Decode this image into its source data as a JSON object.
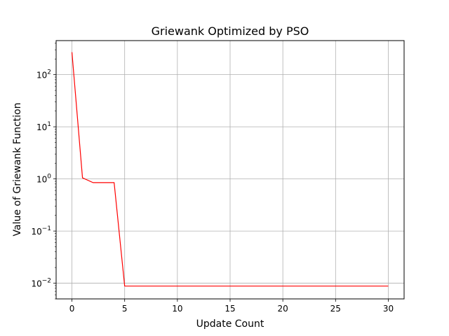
{
  "chart_data": {
    "type": "line",
    "title": "Griewank Optimized by PSO",
    "xlabel": "Update Count",
    "ylabel": "Value of Griewank Function",
    "yscale": "log",
    "xlim": [
      -1.5,
      31.5
    ],
    "ylim": [
      0.005,
      450
    ],
    "grid": true,
    "legend": "none",
    "x_ticks": [
      "0",
      "5",
      "10",
      "15",
      "20",
      "25",
      "30"
    ],
    "y_ticks": [
      {
        "base": "10",
        "exp": "−2",
        "value": 0.01
      },
      {
        "base": "10",
        "exp": "−1",
        "value": 0.1
      },
      {
        "base": "10",
        "exp": "0",
        "value": 1
      },
      {
        "base": "10",
        "exp": "1",
        "value": 10
      },
      {
        "base": "10",
        "exp": "2",
        "value": 100
      }
    ],
    "series": [
      {
        "color": "#ff0000",
        "x": [
          0,
          1,
          2,
          3,
          4,
          5,
          6,
          7,
          8,
          9,
          10,
          11,
          12,
          13,
          14,
          15,
          16,
          17,
          18,
          19,
          20,
          21,
          22,
          23,
          24,
          25,
          26,
          27,
          28,
          29,
          30
        ],
        "y": [
          270,
          1.05,
          0.85,
          0.85,
          0.85,
          0.0088,
          0.0088,
          0.0088,
          0.0088,
          0.0088,
          0.0088,
          0.0088,
          0.0088,
          0.0088,
          0.0088,
          0.0088,
          0.0088,
          0.0088,
          0.0088,
          0.0088,
          0.0088,
          0.0088,
          0.0088,
          0.0088,
          0.0088,
          0.0088,
          0.0088,
          0.0088,
          0.0088,
          0.0088,
          0.0088
        ]
      }
    ]
  }
}
